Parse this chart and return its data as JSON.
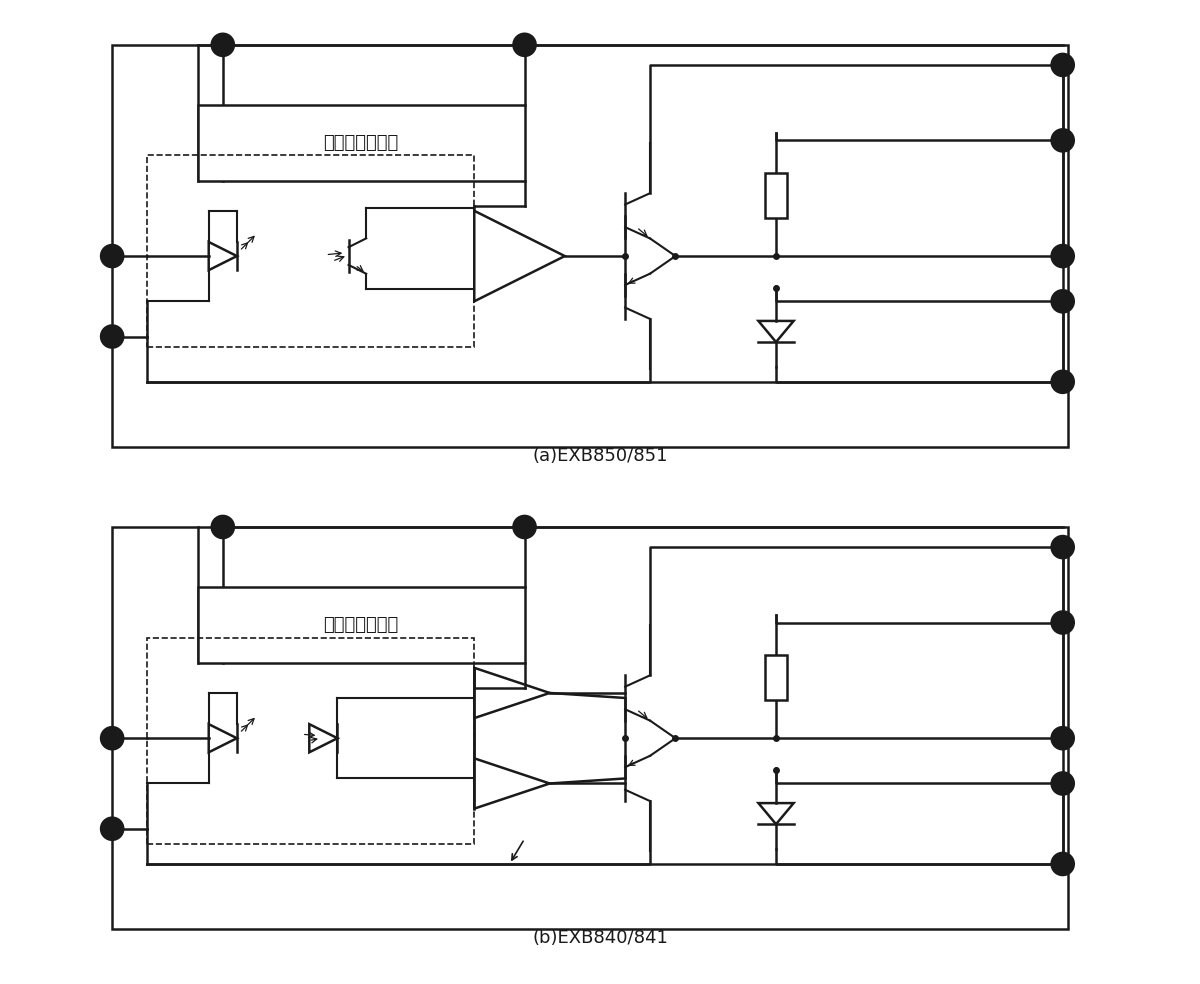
{
  "title_a": "(a)EXB850/851",
  "title_b": "(b)EXB840/841",
  "bg_color": "#ffffff",
  "line_color": "#1a1a1a",
  "box_text": "过电流保护电路",
  "font_size": 12,
  "lw": 1.8
}
